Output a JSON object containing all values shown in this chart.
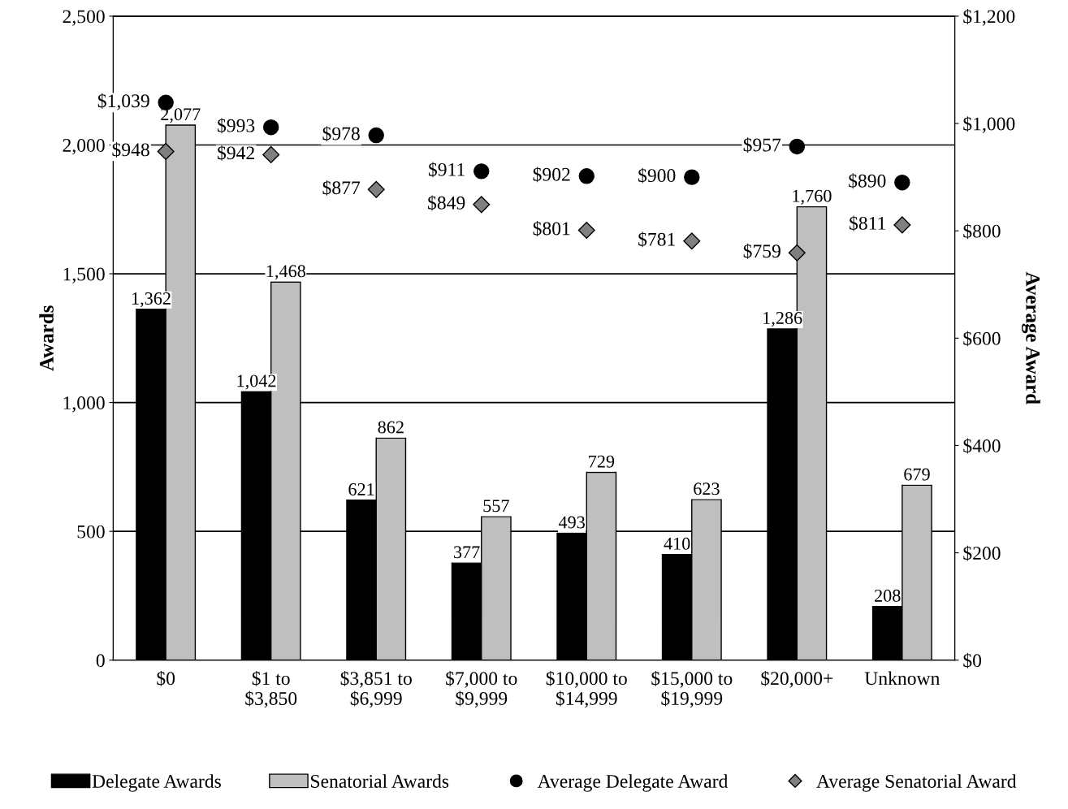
{
  "chart_data": {
    "type": "bar",
    "ylabel": "Awards",
    "y2label": "Average Award",
    "categories": [
      "$0",
      "$1 to\n$3,850",
      "$3,851 to\n$6,999",
      "$7,000 to\n$9,999",
      "$10,000 to\n$14,999",
      "$15,000 to\n$19,999",
      "$20,000+",
      "Unknown"
    ],
    "series": [
      {
        "name": "Delegate Awards",
        "color": "#000000",
        "values": [
          1362,
          1042,
          621,
          377,
          493,
          410,
          1286,
          208
        ],
        "value_labels": [
          "1,362",
          "1,042",
          "621",
          "377",
          "493",
          "410",
          "1,286",
          "208"
        ]
      },
      {
        "name": "Senatorial Awards",
        "color": "#bfbfbf",
        "values": [
          2077,
          1468,
          862,
          557,
          729,
          623,
          1760,
          679
        ],
        "value_labels": [
          "2,077",
          "1,468",
          "862",
          "557",
          "729",
          "623",
          "1,760",
          "679"
        ]
      },
      {
        "name": "Average Delegate Award",
        "type": "scatter",
        "axis": "y2",
        "marker": "circle",
        "color": "#000000",
        "values": [
          1039,
          993,
          978,
          911,
          902,
          900,
          957,
          890
        ],
        "value_labels": [
          "$1,039",
          "$993",
          "$978",
          "$911",
          "$902",
          "$900",
          "$957",
          "$890"
        ]
      },
      {
        "name": "Average Senatorial Award",
        "type": "scatter",
        "axis": "y2",
        "marker": "diamond",
        "color": "#808080",
        "values": [
          948,
          942,
          877,
          849,
          801,
          781,
          759,
          811
        ],
        "value_labels": [
          "$948",
          "$942",
          "$877",
          "$849",
          "$801",
          "$781",
          "$759",
          "$811"
        ]
      }
    ],
    "ylim": [
      0,
      2500
    ],
    "yticks": [
      0,
      500,
      {
        "value": 1000,
        "label": "1,000"
      },
      {
        "value": 1500,
        "label": "1,500"
      },
      {
        "value": 2000,
        "label": "2,000"
      },
      {
        "value": 2500,
        "label": "2,500"
      }
    ],
    "y2lim": [
      0,
      1200
    ],
    "y2ticks": [
      {
        "value": 0,
        "label": "$0"
      },
      {
        "value": 200,
        "label": "$200"
      },
      {
        "value": 400,
        "label": "$400"
      },
      {
        "value": 600,
        "label": "$600"
      },
      {
        "value": 800,
        "label": "$800"
      },
      {
        "value": 1000,
        "label": "$1,000"
      },
      {
        "value": 1200,
        "label": "$1,200"
      }
    ],
    "grid": "y",
    "legend": "bottom"
  }
}
